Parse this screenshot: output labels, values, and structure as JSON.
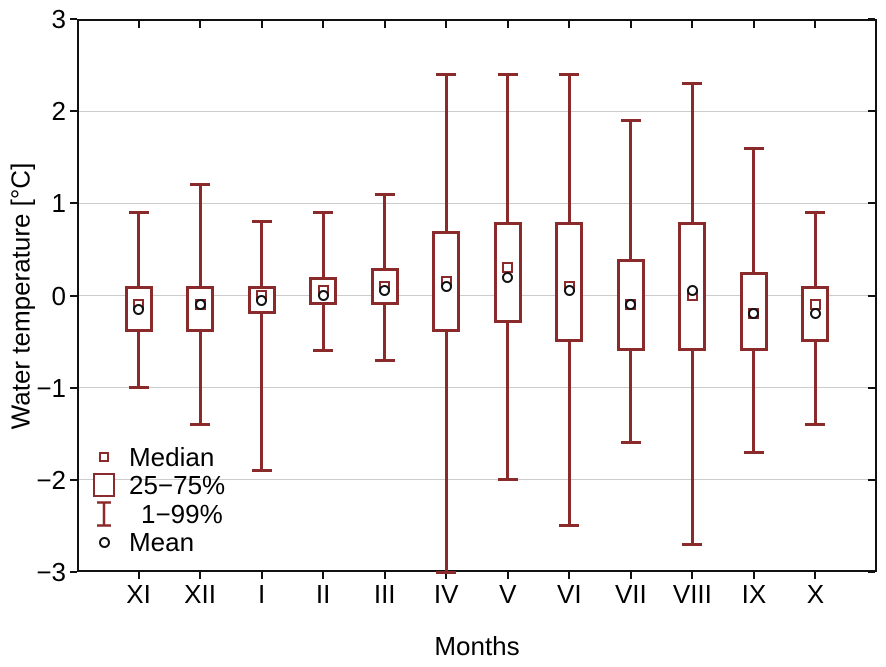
{
  "chart_data": {
    "type": "box",
    "title": "",
    "xlabel": "Months",
    "ylabel": "Water temperature [°C]",
    "ylim": [
      -3,
      3
    ],
    "yticks": [
      3,
      2,
      1,
      0,
      -1,
      -2,
      -3
    ],
    "ytick_labels": [
      "3",
      "2",
      "1",
      "0",
      "−1",
      "−2",
      "−3"
    ],
    "gridlines": [
      2,
      1,
      0,
      -1,
      -2
    ],
    "grid": "horizontal-light-gray",
    "categories": [
      "XI",
      "XII",
      "I",
      "II",
      "III",
      "IV",
      "V",
      "VI",
      "VII",
      "VIII",
      "IX",
      "X"
    ],
    "series": [
      {
        "month": "XI",
        "p1": -1.0,
        "q1": -0.4,
        "median": -0.1,
        "mean": -0.15,
        "q3": 0.1,
        "p99": 0.9
      },
      {
        "month": "XII",
        "p1": -1.4,
        "q1": -0.4,
        "median": -0.1,
        "mean": -0.1,
        "q3": 0.1,
        "p99": 1.2
      },
      {
        "month": "I",
        "p1": -1.9,
        "q1": -0.2,
        "median": 0.0,
        "mean": -0.05,
        "q3": 0.1,
        "p99": 0.8
      },
      {
        "month": "II",
        "p1": -0.6,
        "q1": -0.1,
        "median": 0.05,
        "mean": 0.0,
        "q3": 0.2,
        "p99": 0.9
      },
      {
        "month": "III",
        "p1": -0.7,
        "q1": -0.1,
        "median": 0.1,
        "mean": 0.05,
        "q3": 0.3,
        "p99": 1.1
      },
      {
        "month": "IV",
        "p1": -3.0,
        "q1": -0.4,
        "median": 0.15,
        "mean": 0.1,
        "q3": 0.7,
        "p99": 2.4
      },
      {
        "month": "V",
        "p1": -2.0,
        "q1": -0.3,
        "median": 0.3,
        "mean": 0.2,
        "q3": 0.8,
        "p99": 2.4
      },
      {
        "month": "VI",
        "p1": -2.5,
        "q1": -0.5,
        "median": 0.1,
        "mean": 0.05,
        "q3": 0.8,
        "p99": 2.4
      },
      {
        "month": "VII",
        "p1": -1.6,
        "q1": -0.6,
        "median": -0.1,
        "mean": -0.1,
        "q3": 0.4,
        "p99": 1.9
      },
      {
        "month": "VIII",
        "p1": -2.7,
        "q1": -0.6,
        "median": 0.0,
        "mean": 0.05,
        "q3": 0.8,
        "p99": 2.3
      },
      {
        "month": "IX",
        "p1": -1.7,
        "q1": -0.6,
        "median": -0.2,
        "mean": -0.2,
        "q3": 0.25,
        "p99": 1.6
      },
      {
        "month": "X",
        "p1": -1.4,
        "q1": -0.5,
        "median": -0.1,
        "mean": -0.2,
        "q3": 0.1,
        "p99": 0.9
      }
    ],
    "legend": [
      {
        "marker": "median-square",
        "label": "Median"
      },
      {
        "marker": "iqr-box",
        "label": "25−75%"
      },
      {
        "marker": "whisker-range",
        "label": "1−99%"
      },
      {
        "marker": "mean-circle",
        "label": "Mean"
      }
    ],
    "legend_position": "inside-bottom-left",
    "colors": {
      "box_outline": "#8b2a2a",
      "mean_outline": "#111111",
      "grid": "#cccccc",
      "axis": "#111111",
      "text": "#000000",
      "background": "#ffffff"
    }
  }
}
